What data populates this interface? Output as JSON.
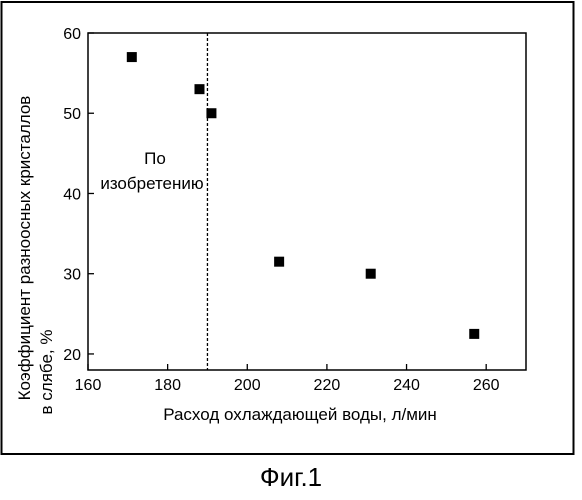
{
  "chart_data": {
    "type": "scatter",
    "x": [
      171,
      188,
      191,
      208,
      231,
      257
    ],
    "y": [
      57,
      53,
      50,
      31.5,
      30,
      22.5
    ],
    "xlim": [
      160,
      270
    ],
    "ylim": [
      18,
      60
    ],
    "xticks": [
      160,
      180,
      200,
      220,
      240,
      260
    ],
    "yticks": [
      20,
      30,
      40,
      50,
      60
    ],
    "xlabel": "Расход охлаждающей воды, л/мин",
    "ylabel_line1": "Коэффициент разноосных кристаллов",
    "ylabel_line2": "в слябе, %",
    "threshold_x": 190,
    "annotation_line1": "По",
    "annotation_line2": "изобретению",
    "marker": "square",
    "marker_color": "#000000",
    "grid": false
  },
  "figure": {
    "caption": "Фиг.1"
  }
}
